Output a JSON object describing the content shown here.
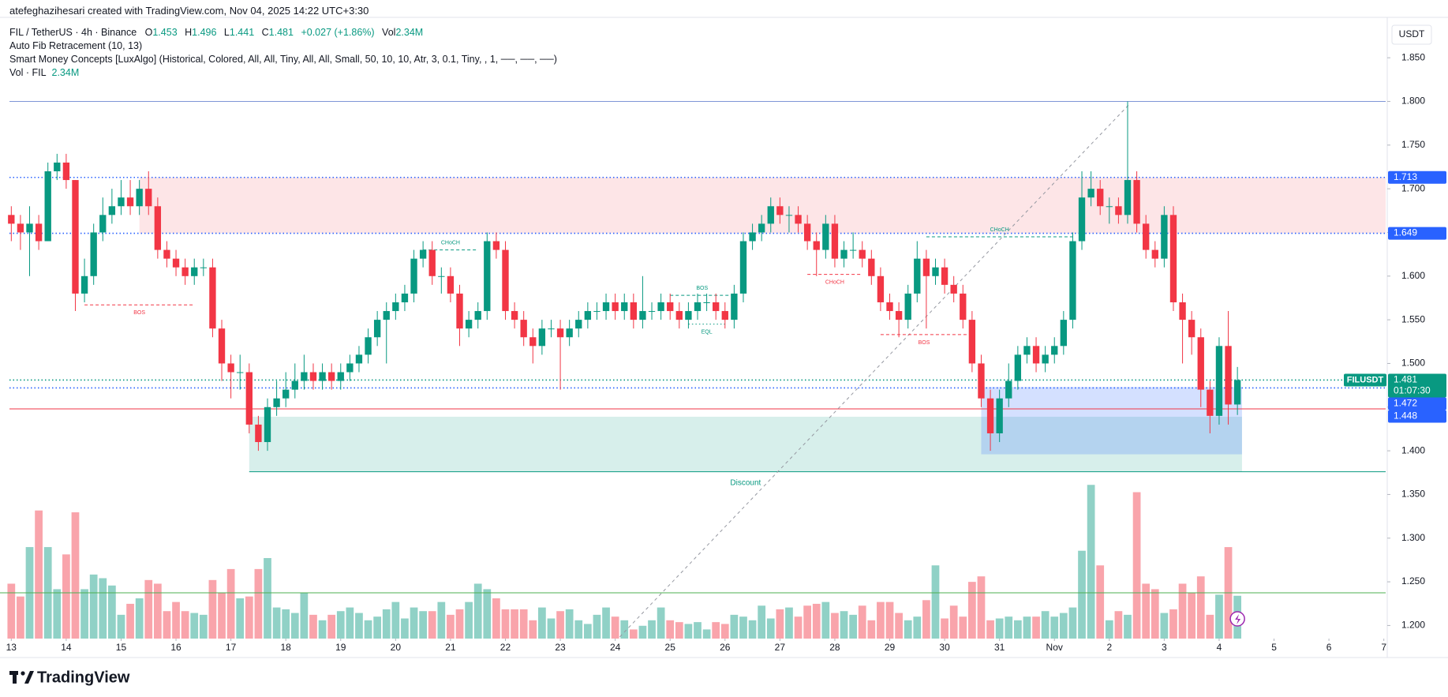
{
  "header": {
    "credit": "atefeghazihesari created with TradingView.com, Nov 04, 2025 14:22 UTC+3:30",
    "symbol": "FIL / TetherUS · 4h · Binance",
    "ohlc": [
      [
        "O",
        "1.453"
      ],
      [
        "H",
        "1.496"
      ],
      [
        "L",
        "1.441"
      ],
      [
        "C",
        "1.481"
      ]
    ],
    "change": "+0.027 (+1.86%)",
    "vol": [
      "Vol",
      "2.34M"
    ],
    "indicators": [
      "Auto Fib Retracement (10, 13)",
      "Smart Money Concepts [LuxAlgo] (Historical, Colored, All, All, Tiny, All, All, Small, 50, 10, 10, Atr, 3, 0.1, Tiny, , 1, ──, ──, ──)"
    ],
    "vol_legend": [
      "Vol · FIL",
      "2.34M"
    ]
  },
  "currency": "USDT",
  "brand": "TradingView",
  "chart_data": {
    "type": "candlestick",
    "up_color": "#089981",
    "down_color": "#f23645",
    "open": [
      1.67,
      1.66,
      1.65,
      1.66,
      1.64,
      1.72,
      1.73,
      1.71,
      1.58,
      1.6,
      1.65,
      1.67,
      1.68,
      1.69,
      1.68,
      1.7,
      1.68,
      1.63,
      1.62,
      1.61,
      1.6,
      1.61,
      1.61,
      1.54,
      1.5,
      1.49,
      1.49,
      1.43,
      1.41,
      1.45,
      1.46,
      1.47,
      1.48,
      1.49,
      1.48,
      1.49,
      1.48,
      1.49,
      1.5,
      1.51,
      1.53,
      1.55,
      1.56,
      1.57,
      1.58,
      1.62,
      1.63,
      1.6,
      1.6,
      1.58,
      1.54,
      1.55,
      1.56,
      1.64,
      1.63,
      1.56,
      1.55,
      1.53,
      1.52,
      1.54,
      1.54,
      1.53,
      1.54,
      1.55,
      1.56,
      1.56,
      1.57,
      1.56,
      1.57,
      1.55,
      1.56,
      1.56,
      1.57,
      1.56,
      1.55,
      1.56,
      1.57,
      1.57,
      1.56,
      1.55,
      1.58,
      1.64,
      1.65,
      1.66,
      1.68,
      1.67,
      1.67,
      1.66,
      1.64,
      1.63,
      1.66,
      1.62,
      1.63,
      1.63,
      1.62,
      1.6,
      1.57,
      1.56,
      1.55,
      1.58,
      1.62,
      1.6,
      1.61,
      1.59,
      1.58,
      1.55,
      1.5,
      1.46,
      1.42,
      1.46,
      1.48,
      1.51,
      1.52,
      1.5,
      1.51,
      1.52,
      1.55,
      1.64,
      1.69,
      1.7,
      1.68,
      1.68,
      1.67,
      1.71,
      1.66,
      1.63,
      1.62,
      1.67,
      1.57,
      1.55,
      1.53,
      1.47,
      1.44,
      1.52,
      1.453
    ],
    "high": [
      1.68,
      1.67,
      1.68,
      1.67,
      1.73,
      1.74,
      1.74,
      1.71,
      1.62,
      1.66,
      1.69,
      1.7,
      1.71,
      1.71,
      1.71,
      1.72,
      1.69,
      1.64,
      1.63,
      1.62,
      1.62,
      1.62,
      1.62,
      1.55,
      1.51,
      1.51,
      1.5,
      1.44,
      1.46,
      1.48,
      1.49,
      1.5,
      1.51,
      1.5,
      1.5,
      1.5,
      1.5,
      1.51,
      1.52,
      1.54,
      1.56,
      1.57,
      1.58,
      1.59,
      1.63,
      1.64,
      1.64,
      1.61,
      1.61,
      1.59,
      1.56,
      1.57,
      1.65,
      1.65,
      1.64,
      1.57,
      1.56,
      1.54,
      1.55,
      1.55,
      1.55,
      1.55,
      1.56,
      1.57,
      1.57,
      1.58,
      1.58,
      1.58,
      1.58,
      1.6,
      1.57,
      1.58,
      1.58,
      1.57,
      1.57,
      1.58,
      1.58,
      1.58,
      1.57,
      1.59,
      1.65,
      1.66,
      1.67,
      1.69,
      1.69,
      1.68,
      1.68,
      1.67,
      1.65,
      1.67,
      1.67,
      1.64,
      1.65,
      1.64,
      1.63,
      1.61,
      1.58,
      1.57,
      1.59,
      1.64,
      1.63,
      1.62,
      1.62,
      1.6,
      1.59,
      1.56,
      1.51,
      1.47,
      1.47,
      1.5,
      1.52,
      1.53,
      1.53,
      1.52,
      1.53,
      1.56,
      1.65,
      1.72,
      1.72,
      1.71,
      1.69,
      1.69,
      1.8,
      1.72,
      1.67,
      1.64,
      1.68,
      1.68,
      1.58,
      1.56,
      1.54,
      1.48,
      1.53,
      1.56,
      1.496
    ],
    "low": [
      1.64,
      1.63,
      1.6,
      1.63,
      1.64,
      1.71,
      1.7,
      1.56,
      1.57,
      1.59,
      1.64,
      1.66,
      1.67,
      1.67,
      1.67,
      1.67,
      1.62,
      1.61,
      1.6,
      1.59,
      1.59,
      1.6,
      1.53,
      1.48,
      1.46,
      1.47,
      1.42,
      1.4,
      1.4,
      1.44,
      1.45,
      1.46,
      1.47,
      1.47,
      1.47,
      1.47,
      1.47,
      1.48,
      1.49,
      1.5,
      1.52,
      1.5,
      1.55,
      1.56,
      1.57,
      1.61,
      1.59,
      1.58,
      1.57,
      1.52,
      1.53,
      1.54,
      1.55,
      1.62,
      1.55,
      1.54,
      1.52,
      1.5,
      1.51,
      1.53,
      1.47,
      1.52,
      1.53,
      1.54,
      1.55,
      1.55,
      1.55,
      1.55,
      1.54,
      1.54,
      1.55,
      1.55,
      1.55,
      1.54,
      1.54,
      1.55,
      1.56,
      1.55,
      1.54,
      1.54,
      1.57,
      1.63,
      1.64,
      1.65,
      1.66,
      1.65,
      1.65,
      1.63,
      1.6,
      1.62,
      1.61,
      1.61,
      1.62,
      1.61,
      1.59,
      1.56,
      1.55,
      1.53,
      1.54,
      1.57,
      1.54,
      1.59,
      1.58,
      1.57,
      1.54,
      1.49,
      1.45,
      1.4,
      1.41,
      1.45,
      1.47,
      1.5,
      1.49,
      1.49,
      1.5,
      1.51,
      1.54,
      1.63,
      1.68,
      1.67,
      1.66,
      1.66,
      1.66,
      1.65,
      1.62,
      1.61,
      1.61,
      1.56,
      1.5,
      1.51,
      1.45,
      1.42,
      1.43,
      1.43,
      1.441
    ],
    "close": [
      1.66,
      1.65,
      1.66,
      1.64,
      1.72,
      1.73,
      1.71,
      1.58,
      1.6,
      1.65,
      1.67,
      1.68,
      1.69,
      1.68,
      1.7,
      1.68,
      1.63,
      1.62,
      1.61,
      1.6,
      1.61,
      1.61,
      1.54,
      1.5,
      1.49,
      1.49,
      1.43,
      1.41,
      1.45,
      1.46,
      1.47,
      1.48,
      1.49,
      1.48,
      1.49,
      1.48,
      1.49,
      1.5,
      1.51,
      1.53,
      1.55,
      1.56,
      1.57,
      1.58,
      1.62,
      1.63,
      1.6,
      1.6,
      1.58,
      1.54,
      1.55,
      1.56,
      1.64,
      1.63,
      1.56,
      1.55,
      1.53,
      1.52,
      1.54,
      1.54,
      1.53,
      1.54,
      1.55,
      1.56,
      1.56,
      1.57,
      1.56,
      1.57,
      1.55,
      1.56,
      1.56,
      1.57,
      1.56,
      1.55,
      1.56,
      1.57,
      1.57,
      1.56,
      1.55,
      1.58,
      1.64,
      1.65,
      1.66,
      1.68,
      1.67,
      1.67,
      1.66,
      1.64,
      1.63,
      1.66,
      1.62,
      1.63,
      1.63,
      1.62,
      1.6,
      1.57,
      1.56,
      1.55,
      1.58,
      1.62,
      1.6,
      1.61,
      1.59,
      1.58,
      1.55,
      1.5,
      1.46,
      1.42,
      1.46,
      1.48,
      1.51,
      1.52,
      1.5,
      1.51,
      1.52,
      1.55,
      1.64,
      1.69,
      1.7,
      1.68,
      1.68,
      1.67,
      1.71,
      1.66,
      1.63,
      1.62,
      1.67,
      1.57,
      1.55,
      1.53,
      1.47,
      1.44,
      1.52,
      1.453,
      1.481
    ],
    "volume": [
      3.0,
      2.3,
      5.0,
      7.0,
      5.0,
      2.7,
      4.6,
      6.9,
      2.7,
      3.5,
      3.3,
      2.9,
      1.3,
      1.9,
      2.2,
      3.2,
      3.0,
      1.5,
      2.0,
      1.5,
      1.4,
      1.3,
      3.2,
      2.5,
      3.8,
      2.2,
      2.3,
      3.8,
      4.4,
      1.7,
      1.6,
      1.4,
      2.5,
      1.3,
      1.0,
      1.3,
      1.5,
      1.7,
      1.4,
      1.0,
      1.2,
      1.6,
      2.0,
      1.1,
      1.7,
      1.5,
      1.5,
      2.0,
      1.3,
      1.6,
      2.0,
      3.0,
      2.7,
      2.2,
      1.6,
      1.6,
      1.6,
      1.0,
      1.7,
      1.1,
      1.5,
      1.6,
      1.0,
      0.8,
      1.3,
      1.7,
      1.2,
      1.0,
      0.5,
      0.7,
      1.0,
      1.7,
      1.0,
      0.9,
      0.8,
      0.9,
      0.5,
      0.9,
      0.8,
      1.3,
      1.2,
      1.0,
      1.8,
      1.1,
      1.6,
      1.7,
      1.2,
      1.8,
      1.9,
      2.0,
      1.4,
      1.5,
      1.3,
      1.8,
      1.0,
      2.0,
      2.0,
      1.4,
      1.0,
      1.2,
      2.1,
      4.0,
      1.1,
      1.8,
      1.2,
      3.1,
      3.4,
      1.0,
      1.1,
      1.2,
      1.0,
      1.2,
      1.2,
      1.5,
      1.2,
      1.4,
      1.7,
      4.8,
      8.4,
      4.0,
      1.0,
      1.5,
      1.3,
      8.0,
      3.0,
      2.7,
      1.4,
      1.6,
      3.0,
      2.5,
      3.4,
      1.3,
      2.4,
      5.0,
      2.34
    ],
    "volume_ma": 2.5,
    "xlim": [
      -0.2,
      150.2
    ],
    "xticks": [
      {
        "value": 0,
        "label": "13"
      },
      {
        "value": 6,
        "label": "14"
      },
      {
        "value": 12,
        "label": "15"
      },
      {
        "value": 18,
        "label": "16"
      },
      {
        "value": 24,
        "label": "17"
      },
      {
        "value": 30,
        "label": "18"
      },
      {
        "value": 36,
        "label": "19"
      },
      {
        "value": 42,
        "label": "20"
      },
      {
        "value": 48,
        "label": "21"
      },
      {
        "value": 54,
        "label": "22"
      },
      {
        "value": 60,
        "label": "23"
      },
      {
        "value": 66,
        "label": "24"
      },
      {
        "value": 72,
        "label": "25"
      },
      {
        "value": 78,
        "label": "26"
      },
      {
        "value": 84,
        "label": "27"
      },
      {
        "value": 90,
        "label": "28"
      },
      {
        "value": 96,
        "label": "29"
      },
      {
        "value": 102,
        "label": "30"
      },
      {
        "value": 108,
        "label": "31"
      },
      {
        "value": 114,
        "label": "Nov"
      },
      {
        "value": 120,
        "label": "2"
      },
      {
        "value": 126,
        "label": "3"
      },
      {
        "value": 132,
        "label": "4"
      },
      {
        "value": 138,
        "label": "5"
      },
      {
        "value": 144,
        "label": "6"
      },
      {
        "value": 150,
        "label": "7"
      }
    ],
    "ylim": [
      1.185,
      1.889
    ],
    "yticks": [
      {
        "value": 1.2,
        "label": "1.200"
      },
      {
        "value": 1.25,
        "label": "1.250"
      },
      {
        "value": 1.3,
        "label": "1.300"
      },
      {
        "value": 1.35,
        "label": "1.350"
      },
      {
        "value": 1.4,
        "label": "1.400"
      },
      {
        "value": 1.45,
        "label": "1.450"
      },
      {
        "value": 1.5,
        "label": "1.500"
      },
      {
        "value": 1.55,
        "label": "1.550"
      },
      {
        "value": 1.6,
        "label": "1.600"
      },
      {
        "value": 1.65,
        "label": "1.650"
      },
      {
        "value": 1.7,
        "label": "1.700"
      },
      {
        "value": 1.75,
        "label": "1.750"
      },
      {
        "value": 1.8,
        "label": "1.800"
      },
      {
        "value": 1.85,
        "label": "1.850"
      }
    ],
    "grid": false,
    "zones": [
      {
        "i0": 14,
        "i1": 150.2,
        "v0": 1.649,
        "v1": 1.713,
        "color": "rgba(242,54,69,0.13)"
      },
      {
        "i0": 26,
        "i1": 134.5,
        "v0": 1.376,
        "v1": 1.439,
        "color": "rgba(8,153,129,0.16)",
        "label": "Discount",
        "label_color": "#089981"
      },
      {
        "i0": 106,
        "i1": 134.5,
        "v0": 1.396,
        "v1": 1.473,
        "color": "rgba(41,98,255,0.2)"
      }
    ],
    "levels": [
      {
        "value": 1.8,
        "color": "#7f95d6",
        "style": "solid",
        "i0": -0.2
      },
      {
        "value": 1.713,
        "color": "#2962ff",
        "style": "dotted",
        "i0": -0.2
      },
      {
        "value": 1.649,
        "color": "#2962ff",
        "style": "dotted",
        "i0": -0.2
      },
      {
        "value": 1.481,
        "color": "#089981",
        "style": "dotted",
        "i0": -0.2
      },
      {
        "value": 1.472,
        "color": "#2962ff",
        "style": "dotted",
        "i0": -0.2
      },
      {
        "value": 1.448,
        "color": "#f23645",
        "style": "solid",
        "i0": -0.2
      },
      {
        "value": 1.376,
        "color": "#089981",
        "style": "solid",
        "i0": 26
      }
    ],
    "fib": {
      "i0": 66.5,
      "v0": 1.187,
      "i1": 122.3,
      "v1": 1.798,
      "color": "#9598a1"
    },
    "structures": [
      {
        "label": "BOS",
        "color": "#f23645",
        "style": "dashed",
        "price": 1.567,
        "i0": 8,
        "i1": 20
      },
      {
        "label": "CHoCH",
        "color": "#089981",
        "style": "dashed",
        "price": 1.63,
        "i0": 45,
        "i1": 51
      },
      {
        "label": "BOS",
        "color": "#089981",
        "style": "dashed",
        "price": 1.578,
        "i0": 72,
        "i1": 79
      },
      {
        "label": "EQL",
        "color": "#089981",
        "style": "dotted",
        "price": 1.545,
        "i0": 74,
        "i1": 78
      },
      {
        "label": "CHoCH",
        "color": "#f23645",
        "style": "dashed",
        "price": 1.602,
        "i0": 87,
        "i1": 93
      },
      {
        "label": "BOS",
        "color": "#f23645",
        "style": "dashed",
        "price": 1.533,
        "i0": 95,
        "i1": 104.5
      },
      {
        "label": "CHoCH",
        "color": "#089981",
        "style": "dashed",
        "price": 1.645,
        "i0": 100,
        "i1": 116
      }
    ],
    "price_tags": [
      {
        "label": "1.713",
        "value": 1.713,
        "color": "#2962ff"
      },
      {
        "label": "1.649",
        "value": 1.649,
        "color": "#2962ff"
      },
      {
        "label": "1.481",
        "value": 1.481,
        "color": "#089981",
        "symbol": "FILUSDT",
        "countdown": "01:07:30"
      },
      {
        "label": "1.472",
        "value": 1.472,
        "color": "#2962ff"
      },
      {
        "label": "1.448",
        "value": 1.448,
        "color": "#2962ff"
      }
    ]
  }
}
